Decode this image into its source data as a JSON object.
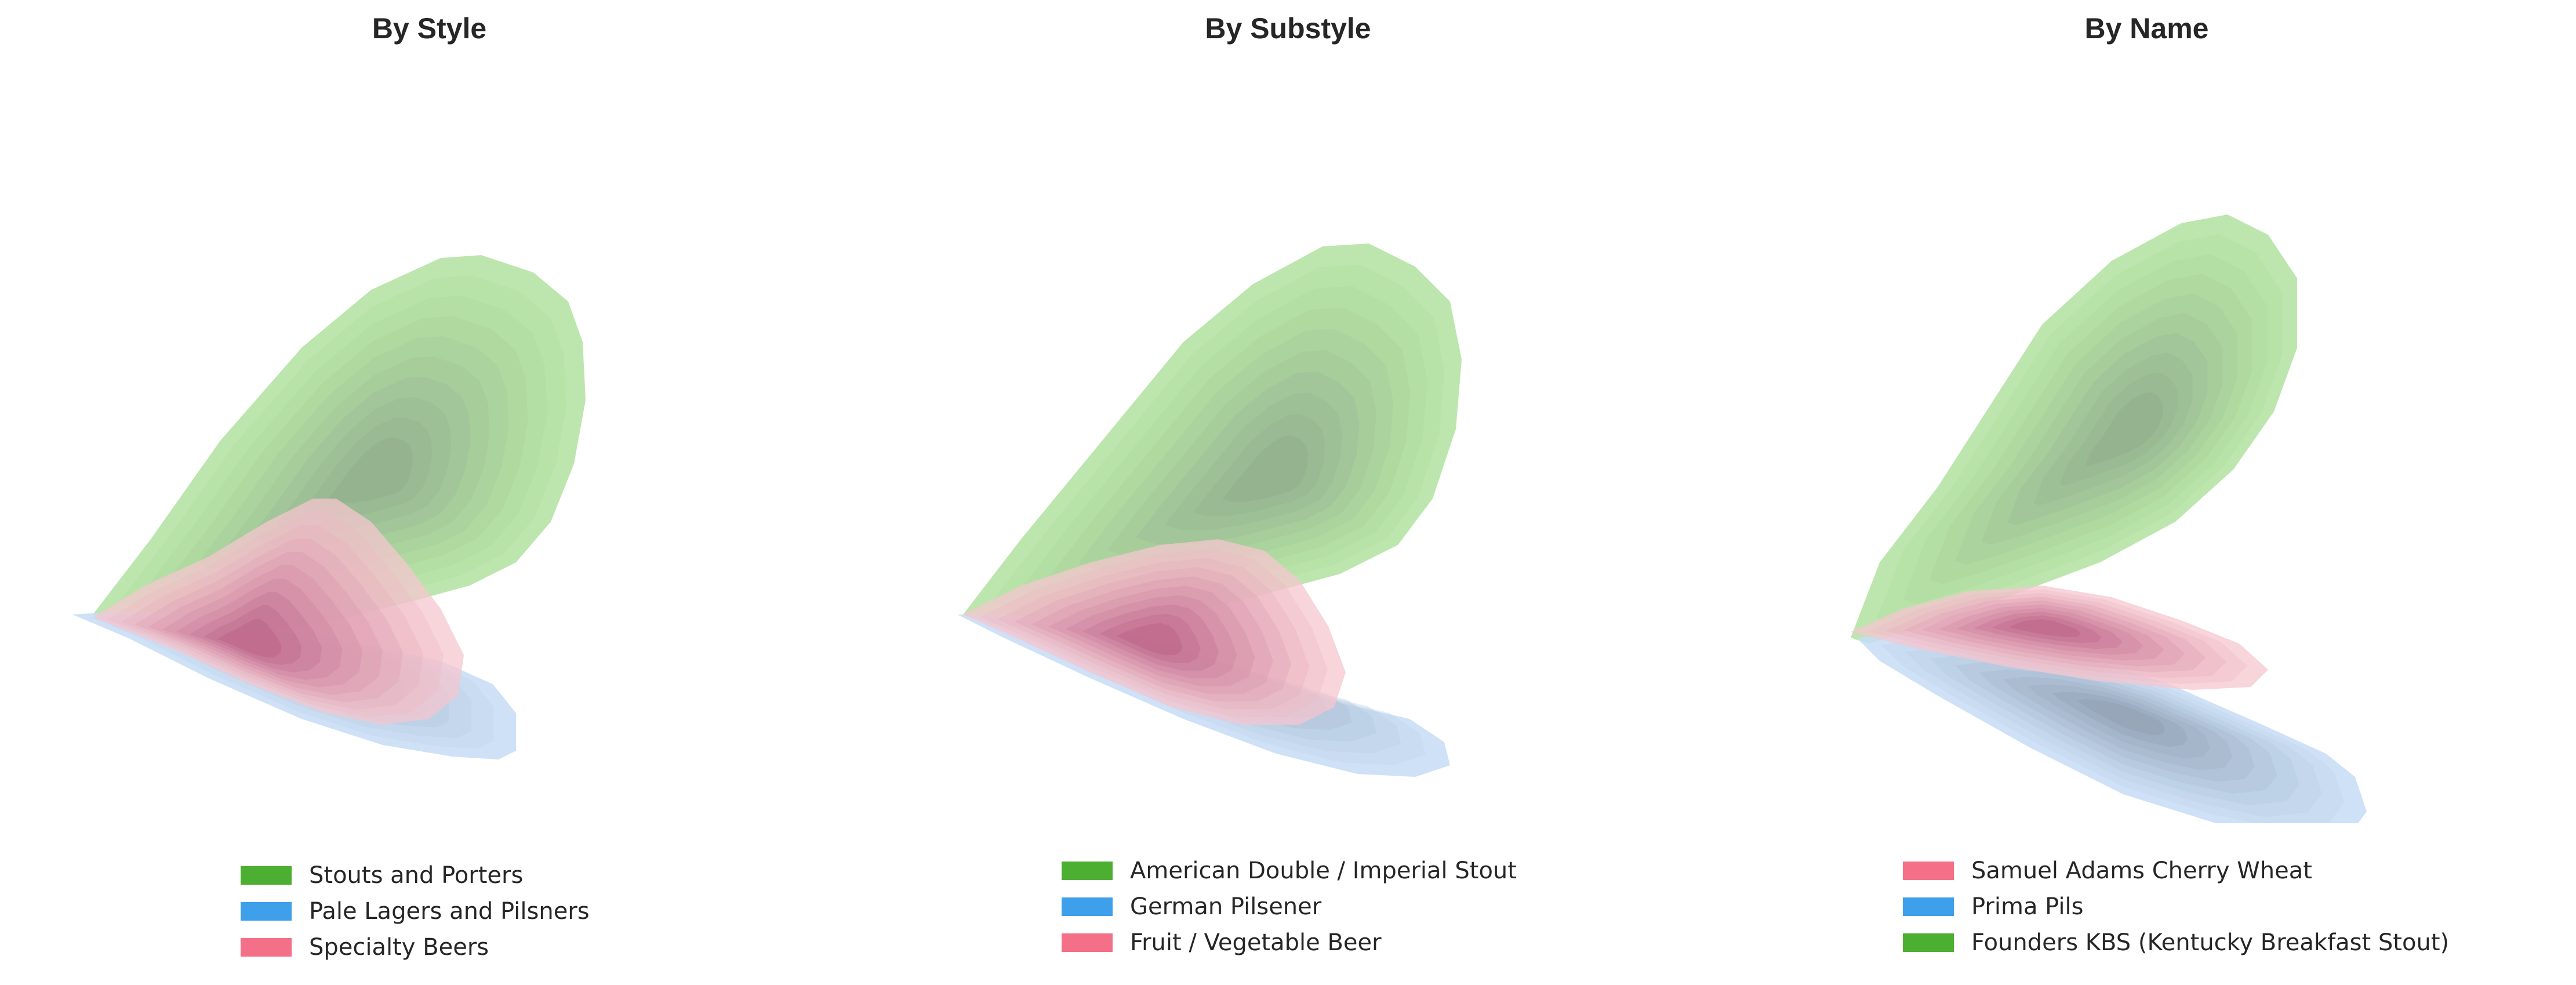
{
  "colors": {
    "green": "#4daf31",
    "blue": "#3e9feb",
    "pink": "#f46f88"
  },
  "panels": [
    {
      "title": "By Style",
      "legend": [
        {
          "label": "Stouts and Porters",
          "color": "#4daf31"
        },
        {
          "label": "Pale Lagers and Pilsners",
          "color": "#3e9feb"
        },
        {
          "label": "Specialty Beers",
          "color": "#f46f88"
        }
      ]
    },
    {
      "title": "By Substyle",
      "legend": [
        {
          "label": "American Double / Imperial Stout",
          "color": "#4daf31"
        },
        {
          "label": "German Pilsener",
          "color": "#3e9feb"
        },
        {
          "label": "Fruit / Vegetable Beer",
          "color": "#f46f88"
        }
      ]
    },
    {
      "title": "By Name",
      "legend": [
        {
          "label": "Samuel Adams Cherry Wheat",
          "color": "#f46f88"
        },
        {
          "label": "Prima Pils",
          "color": "#3e9feb"
        },
        {
          "label": "Founders KBS (Kentucky Breakfast Stout)",
          "color": "#4daf31"
        }
      ]
    }
  ],
  "chart_data": [
    {
      "type": "kde-contour",
      "title": "By Style",
      "axes_visible": false,
      "series": [
        {
          "name": "Stouts and Porters",
          "color": "#4daf31",
          "density": "broad elongated diagonal, highest density upper-middle",
          "levels": 10
        },
        {
          "name": "Pale Lagers and Pilsners",
          "color": "#3e9feb",
          "density": "lower band sloping down-right",
          "levels": 10
        },
        {
          "name": "Specialty Beers",
          "color": "#f46f88",
          "density": "triangular, peak lower-left",
          "levels": 10
        }
      ]
    },
    {
      "type": "kde-contour",
      "title": "By Substyle",
      "axes_visible": false,
      "series": [
        {
          "name": "American Double / Imperial Stout",
          "color": "#4daf31",
          "levels": 10
        },
        {
          "name": "German Pilsener",
          "color": "#3e9feb",
          "levels": 10
        },
        {
          "name": "Fruit / Vegetable Beer",
          "color": "#f46f88",
          "levels": 10
        }
      ]
    },
    {
      "type": "kde-contour",
      "title": "By Name",
      "axes_visible": false,
      "series": [
        {
          "name": "Samuel Adams Cherry Wheat",
          "color": "#f46f88",
          "levels": 10
        },
        {
          "name": "Prima Pils",
          "color": "#3e9feb",
          "levels": 10
        },
        {
          "name": "Founders KBS (Kentucky Breakfast Stout)",
          "color": "#4daf31",
          "levels": 10
        }
      ]
    }
  ]
}
